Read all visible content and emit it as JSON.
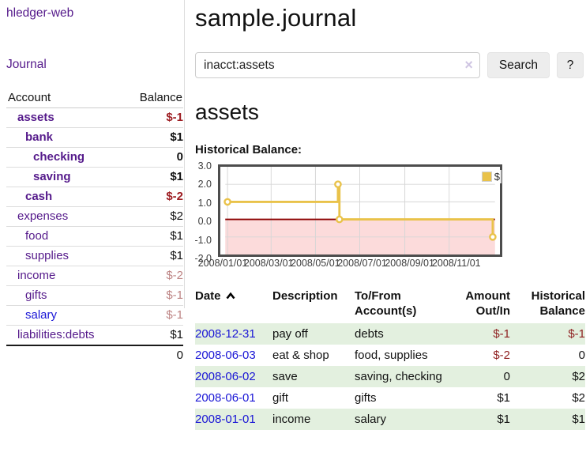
{
  "app": {
    "brand": "hledger-web",
    "nav": {
      "journal": "Journal"
    }
  },
  "colors": {
    "link_purple": "#551a8b",
    "link_blue": "#1a16d6",
    "negative_strong": "#9d1d22",
    "negative_muted": "#bd8484",
    "negative_register": "#8e1f1f",
    "row_green": "#e3f0df",
    "chart_line": "#e9c24a",
    "chart_negative_region": "#fcdbdb",
    "chart_zero_line": "#8b0000",
    "button_bg": "#ededed"
  },
  "sidebar": {
    "header": {
      "account": "Account",
      "balance": "Balance"
    },
    "rows": [
      {
        "name": "assets",
        "balance": "$-1"
      },
      {
        "name": "bank",
        "balance": "$1"
      },
      {
        "name": "checking",
        "balance": "0"
      },
      {
        "name": "saving",
        "balance": "$1"
      },
      {
        "name": "cash",
        "balance": "$-2"
      },
      {
        "name": "expenses",
        "balance": "$2"
      },
      {
        "name": "food",
        "balance": "$1"
      },
      {
        "name": "supplies",
        "balance": "$1"
      },
      {
        "name": "income",
        "balance": "$-2"
      },
      {
        "name": "gifts",
        "balance": "$-1"
      },
      {
        "name": "salary",
        "balance": "$-1"
      },
      {
        "name": "liabilities:debts",
        "balance": "$1"
      }
    ],
    "total": "0"
  },
  "main": {
    "title": "sample.journal",
    "search": {
      "value": "inacct:assets",
      "clear_icon": "×",
      "button": "Search",
      "help_button": "?"
    },
    "account_heading": "assets",
    "chart_title": "Historical Balance:",
    "register": {
      "columns": {
        "date": "Date",
        "description": "Description",
        "accounts": "To/From Account(s)",
        "amount": "Amount Out/In",
        "balance": "Historical Balance"
      },
      "rows": [
        {
          "date": "2008-12-31",
          "description": "pay off",
          "accounts": "debts",
          "amount": "$-1",
          "balance": "$-1"
        },
        {
          "date": "2008-06-03",
          "description": "eat & shop",
          "accounts": "food, supplies",
          "amount": "$-2",
          "balance": "0"
        },
        {
          "date": "2008-06-02",
          "description": "save",
          "accounts": "saving, checking",
          "amount": "0",
          "balance": "$2"
        },
        {
          "date": "2008-06-01",
          "description": "gift",
          "accounts": "gifts",
          "amount": "$1",
          "balance": "$2"
        },
        {
          "date": "2008-01-01",
          "description": "income",
          "accounts": "salary",
          "amount": "$1",
          "balance": "$1"
        }
      ]
    }
  },
  "chart_data": {
    "type": "line",
    "step": true,
    "title": "Historical Balance:",
    "legend": "$",
    "legend_position": "top-right",
    "grid": true,
    "series": [
      {
        "name": "$",
        "points": [
          {
            "date": "2008-01-01",
            "value": 1
          },
          {
            "date": "2008-06-01",
            "value": 2
          },
          {
            "date": "2008-06-03",
            "value": 0
          },
          {
            "date": "2008-12-31",
            "value": -1
          }
        ]
      }
    ],
    "ylim": [
      -2,
      3
    ],
    "y_ticks": [
      3,
      2,
      1,
      0,
      -1,
      -2
    ],
    "y_tick_labels": [
      "3.0",
      "2.0",
      "1.0",
      "0.0",
      "-1.0",
      "-2.0"
    ],
    "x_ticks_days": [
      0,
      60,
      121,
      182,
      244,
      305
    ],
    "x_tick_labels": [
      "2008/01/01",
      "2008/03/01",
      "2008/05/01",
      "2008/07/01",
      "2008/09/01",
      "2008/11/01"
    ],
    "xlim_days": [
      0,
      368
    ]
  }
}
